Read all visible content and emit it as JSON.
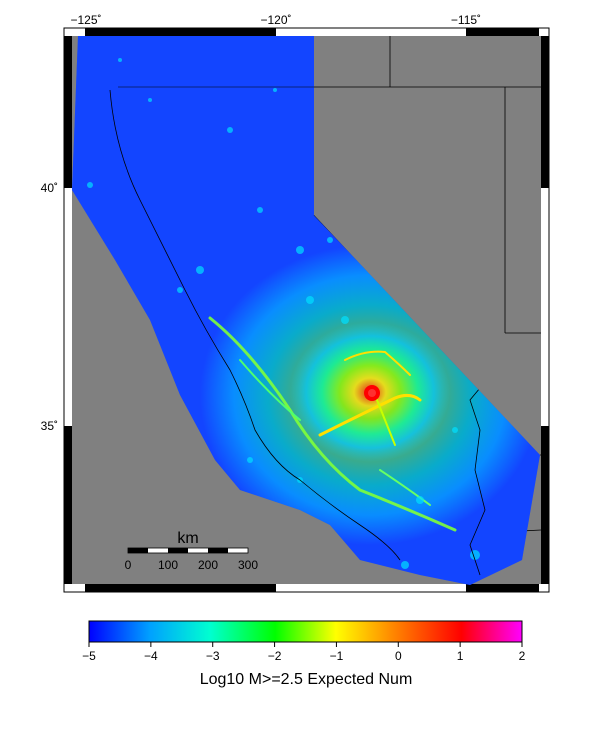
{
  "map": {
    "lon_ticks": [
      "−125˚",
      "−120˚",
      "−115˚"
    ],
    "lat_ticks": [
      "40˚",
      "35˚"
    ],
    "background_color": "#808080",
    "border_color": "#000000"
  },
  "scale_bar": {
    "unit": "km",
    "ticks": [
      "0",
      "100",
      "200",
      "300"
    ]
  },
  "colorbar": {
    "label": "Log10 M>=2.5 Expected Num",
    "ticks": [
      "−5",
      "−4",
      "−3",
      "−2",
      "−1",
      "0",
      "1",
      "2"
    ],
    "range": [
      -5,
      2
    ],
    "colors": [
      "#0000ff",
      "#00b4ff",
      "#00ffff",
      "#00ff00",
      "#ffff00",
      "#ff8000",
      "#ff0000",
      "#ff00ff"
    ]
  },
  "hotspot": {
    "color": "#ff0000"
  }
}
